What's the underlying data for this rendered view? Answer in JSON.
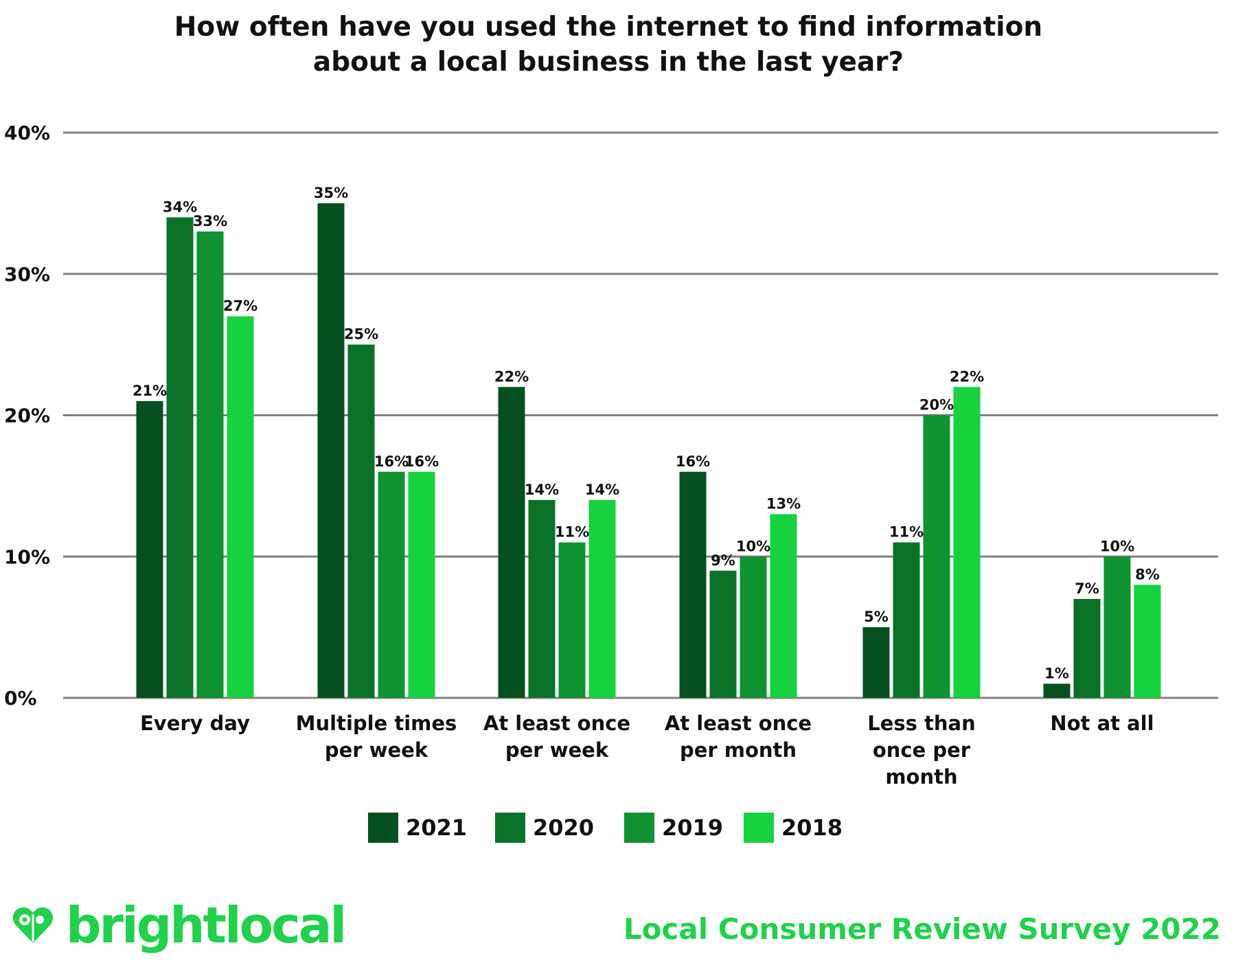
{
  "title_lines": [
    "How often have you used the internet to find information",
    "about a local business in the last year?"
  ],
  "brand": "brightlocal",
  "footer": "Local Consumer Review Survey 2022",
  "colors": {
    "2021": "#06501e",
    "2020": "#0a7227",
    "2019": "#0e9330",
    "2018": "#16d23f",
    "brand": "#1fd24a",
    "grid": "#808080"
  },
  "chart_data": {
    "type": "bar",
    "title": "How often have you used the internet to find information about a local business in the last year?",
    "categories": [
      [
        "Every day"
      ],
      [
        "Multiple times",
        "per week"
      ],
      [
        "At least once",
        "per week"
      ],
      [
        "At least once",
        "per month"
      ],
      [
        "Less than",
        "once per",
        "month"
      ],
      [
        "Not at all"
      ]
    ],
    "series": [
      {
        "name": "2021",
        "values": [
          21,
          35,
          22,
          16,
          5,
          1
        ]
      },
      {
        "name": "2020",
        "values": [
          34,
          25,
          14,
          9,
          11,
          7
        ]
      },
      {
        "name": "2019",
        "values": [
          33,
          16,
          11,
          10,
          20,
          10
        ]
      },
      {
        "name": "2018",
        "values": [
          27,
          16,
          14,
          13,
          22,
          8
        ]
      }
    ],
    "ylim": [
      0,
      40
    ],
    "yticks": [
      "0%",
      "10%",
      "20%",
      "30%",
      "40%"
    ],
    "value_suffix": "%",
    "grid": true,
    "legend": "bottom"
  }
}
